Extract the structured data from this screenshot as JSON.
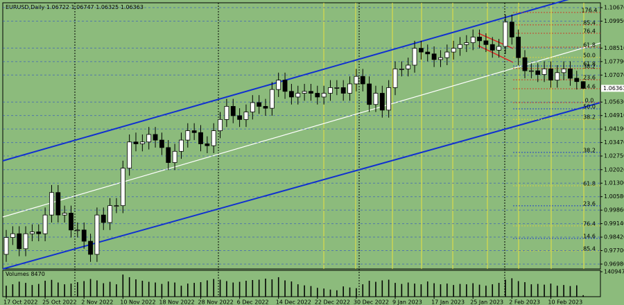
{
  "chart_data": {
    "type": "candlestick",
    "symbol": "EURUSD,Daily",
    "volume_label": "Volumes",
    "categories": [
      "17 Oct 2022",
      "25 Oct 2022",
      "2 Nov 2022",
      "10 Nov 2022",
      "18 Nov 2022",
      "28 Nov 2022",
      "6 Dec 2022",
      "14 Dec 2022",
      "22 Dec 2022",
      "30 Dec 2022",
      "9 Jan 2023",
      "17 Jan 2023",
      "25 Jan 2023",
      "2 Feb 2023",
      "10 Feb 2023"
    ],
    "label_every": 6,
    "open": [
      0.975,
      0.984,
      0.986,
      0.978,
      0.986,
      0.987,
      0.986,
      0.996,
      1.008,
      0.996,
      0.997,
      0.988,
      0.988,
      0.982,
      0.975,
      0.996,
      0.992,
      1.001,
      1.001,
      1.021,
      1.035,
      1.034,
      1.035,
      1.039,
      1.036,
      1.032,
      1.024,
      1.03,
      1.036,
      1.041,
      1.04,
      1.034,
      1.033,
      1.041,
      1.047,
      1.054,
      1.049,
      1.047,
      1.051,
      1.056,
      1.054,
      1.053,
      1.063,
      1.068,
      1.062,
      1.059,
      1.061,
      1.062,
      1.061,
      1.059,
      1.061,
      1.064,
      1.064,
      1.061,
      1.066,
      1.07,
      1.066,
      1.055,
      1.061,
      1.052,
      1.064,
      1.074,
      1.074,
      1.076,
      1.085,
      1.083,
      1.082,
      1.079,
      1.08,
      1.083,
      1.085,
      1.087,
      1.088,
      1.091,
      1.089,
      1.087,
      1.084,
      1.086,
      1.099,
      1.091,
      1.08,
      1.073,
      1.073,
      1.071,
      1.074,
      1.068,
      1.072,
      1.074,
      1.069,
      1.06722
    ],
    "high": [
      0.988,
      0.99,
      0.99,
      0.99,
      0.991,
      0.991,
      1.0,
      1.012,
      1.012,
      1.001,
      1.001,
      0.992,
      0.992,
      0.986,
      1.0,
      1.0,
      1.005,
      1.005,
      1.025,
      1.039,
      1.04,
      1.039,
      1.043,
      1.043,
      1.04,
      1.036,
      1.034,
      1.04,
      1.045,
      1.045,
      1.044,
      1.038,
      1.045,
      1.051,
      1.058,
      1.058,
      1.053,
      1.055,
      1.06,
      1.06,
      1.058,
      1.067,
      1.072,
      1.072,
      1.066,
      1.065,
      1.066,
      1.066,
      1.065,
      1.065,
      1.068,
      1.068,
      1.068,
      1.07,
      1.074,
      1.074,
      1.07,
      1.065,
      1.065,
      1.068,
      1.078,
      1.078,
      1.08,
      1.089,
      1.089,
      1.087,
      1.086,
      1.084,
      1.087,
      1.089,
      1.091,
      1.092,
      1.095,
      1.095,
      1.093,
      1.091,
      1.09,
      1.103,
      1.103,
      1.095,
      1.084,
      1.077,
      1.077,
      1.078,
      1.078,
      1.076,
      1.078,
      1.078,
      1.073,
      1.06747
    ],
    "low": [
      0.971,
      0.98,
      0.974,
      0.974,
      0.982,
      0.982,
      0.982,
      0.992,
      0.992,
      0.992,
      0.984,
      0.984,
      0.978,
      0.971,
      0.971,
      0.988,
      0.988,
      0.997,
      0.997,
      1.017,
      1.03,
      1.03,
      1.031,
      1.032,
      1.028,
      1.02,
      1.02,
      1.026,
      1.032,
      1.036,
      1.03,
      1.029,
      1.029,
      1.037,
      1.043,
      1.045,
      1.043,
      1.043,
      1.047,
      1.05,
      1.049,
      1.049,
      1.059,
      1.058,
      1.055,
      1.055,
      1.057,
      1.057,
      1.055,
      1.055,
      1.057,
      1.06,
      1.057,
      1.057,
      1.062,
      1.062,
      1.051,
      1.051,
      1.048,
      1.048,
      1.06,
      1.07,
      1.07,
      1.072,
      1.079,
      1.078,
      1.075,
      1.075,
      1.076,
      1.079,
      1.081,
      1.083,
      1.084,
      1.085,
      1.083,
      1.08,
      1.08,
      1.082,
      1.087,
      1.076,
      1.069,
      1.069,
      1.067,
      1.067,
      1.064,
      1.064,
      1.068,
      1.065,
      1.063,
      1.06325
    ],
    "close": [
      0.984,
      0.986,
      0.978,
      0.986,
      0.987,
      0.986,
      0.996,
      1.008,
      0.996,
      0.997,
      0.988,
      0.988,
      0.982,
      0.975,
      0.996,
      0.992,
      1.001,
      1.001,
      1.021,
      1.035,
      1.034,
      1.035,
      1.039,
      1.036,
      1.032,
      1.024,
      1.03,
      1.036,
      1.041,
      1.04,
      1.034,
      1.033,
      1.041,
      1.047,
      1.054,
      1.049,
      1.047,
      1.051,
      1.056,
      1.054,
      1.053,
      1.063,
      1.068,
      1.062,
      1.059,
      1.061,
      1.062,
      1.061,
      1.059,
      1.061,
      1.064,
      1.064,
      1.061,
      1.066,
      1.07,
      1.066,
      1.055,
      1.061,
      1.052,
      1.064,
      1.074,
      1.074,
      1.076,
      1.085,
      1.083,
      1.082,
      1.079,
      1.08,
      1.083,
      1.085,
      1.087,
      1.088,
      1.091,
      1.089,
      1.087,
      1.084,
      1.086,
      1.099,
      1.091,
      1.08,
      1.073,
      1.073,
      1.071,
      1.074,
      1.068,
      1.072,
      1.074,
      1.069,
      1.06722,
      1.06363
    ],
    "volumes": [
      62000,
      70000,
      85000,
      78000,
      66000,
      72000,
      90000,
      95000,
      80000,
      70000,
      74000,
      82000,
      88000,
      100000,
      92000,
      76000,
      84000,
      70000,
      125000,
      110000,
      98000,
      90000,
      84000,
      80000,
      72000,
      86000,
      80000,
      62000,
      74000,
      78000,
      82000,
      92000,
      100000,
      96000,
      88000,
      80000,
      84000,
      90000,
      94000,
      96000,
      102000,
      98000,
      110000,
      92000,
      86000,
      70000,
      64000,
      60000,
      50000,
      46000,
      40000,
      36000,
      58000,
      52000,
      48000,
      70000,
      90000,
      84000,
      92000,
      96000,
      78000,
      72000,
      80000,
      74000,
      70000,
      86000,
      76000,
      70000,
      74000,
      66000,
      72000,
      70000,
      76000,
      68000,
      62000,
      70000,
      78000,
      96000,
      104000,
      88000,
      82000,
      70000,
      72000,
      68000,
      74000,
      62000,
      66000,
      60000,
      64000,
      8470
    ],
    "ylim": [
      0.9672,
      1.1093
    ],
    "yticks": [
      {
        "value": 1.1067,
        "label": "1.10670"
      },
      {
        "value": 1.0995,
        "label": "1.09950"
      },
      {
        "value": 1.0851,
        "label": "1.08510"
      },
      {
        "value": 1.0779,
        "label": "1.07790"
      },
      {
        "value": 1.0707,
        "label": "1.07070"
      },
      {
        "value": 1.0563,
        "label": "1.05630"
      },
      {
        "value": 1.0491,
        "label": "1.04910"
      },
      {
        "value": 1.0419,
        "label": "1.04190"
      },
      {
        "value": 1.0347,
        "label": "1.03470"
      },
      {
        "value": 1.0275,
        "label": "1.02750"
      },
      {
        "value": 1.0202,
        "label": "1.02020"
      },
      {
        "value": 1.013,
        "label": "1.01300"
      },
      {
        "value": 1.0058,
        "label": "1.00580"
      },
      {
        "value": 0.9986,
        "label": "0.99860"
      },
      {
        "value": 0.9914,
        "label": "0.99140"
      },
      {
        "value": 0.9842,
        "label": "0.98420"
      },
      {
        "value": 0.977,
        "label": "0.97700"
      },
      {
        "value": 0.9698,
        "label": "0.96980"
      }
    ],
    "volume_ylim": [
      0,
      140947
    ],
    "volume_yticks": [
      140947
    ],
    "levels": [
      {
        "label": "176.4",
        "value": 1.1041,
        "color": "#c8402a"
      },
      {
        "label": "85.4",
        "value": 1.0975,
        "color": "#c8402a"
      },
      {
        "label": "76.4",
        "value": 1.093,
        "color": "#c8402a"
      },
      {
        "label": "61.8",
        "value": 1.0856,
        "color": "#c8402a"
      },
      {
        "label": "50.0",
        "value": 1.0801,
        "color": "#d8d040"
      },
      {
        "label": "61.8",
        "value": 1.0756,
        "color": "#2244cc"
      },
      {
        "label": "38.2",
        "value": 1.0742,
        "color": "#c8402a"
      },
      {
        "label": "23.6",
        "value": 1.0682,
        "color": "#c8402a"
      },
      {
        "label": "14.6",
        "value": 1.0634,
        "color": "#c8402a"
      },
      {
        "label": "0.0",
        "value": 1.056,
        "color": "#c8402a"
      },
      {
        "label": "50.0",
        "value": 1.0527,
        "color": "#2244cc"
      },
      {
        "label": "38.2",
        "value": 1.0471,
        "color": "#d8d040"
      },
      {
        "label": "38.2",
        "value": 1.0294,
        "color": "#2244cc"
      },
      {
        "label": "61.8",
        "value": 1.0116,
        "color": "#d8d040"
      },
      {
        "label": "23.6",
        "value": 1.0009,
        "color": "#2244cc"
      },
      {
        "label": "76.4",
        "value": 0.9902,
        "color": "#d8d040"
      },
      {
        "label": "14.6",
        "value": 0.9835,
        "color": "#2244cc"
      },
      {
        "label": "85.4",
        "value": 0.9768,
        "color": "#d8d040"
      }
    ],
    "up_color": "#ffffff",
    "down_color": "#000000"
  }
}
